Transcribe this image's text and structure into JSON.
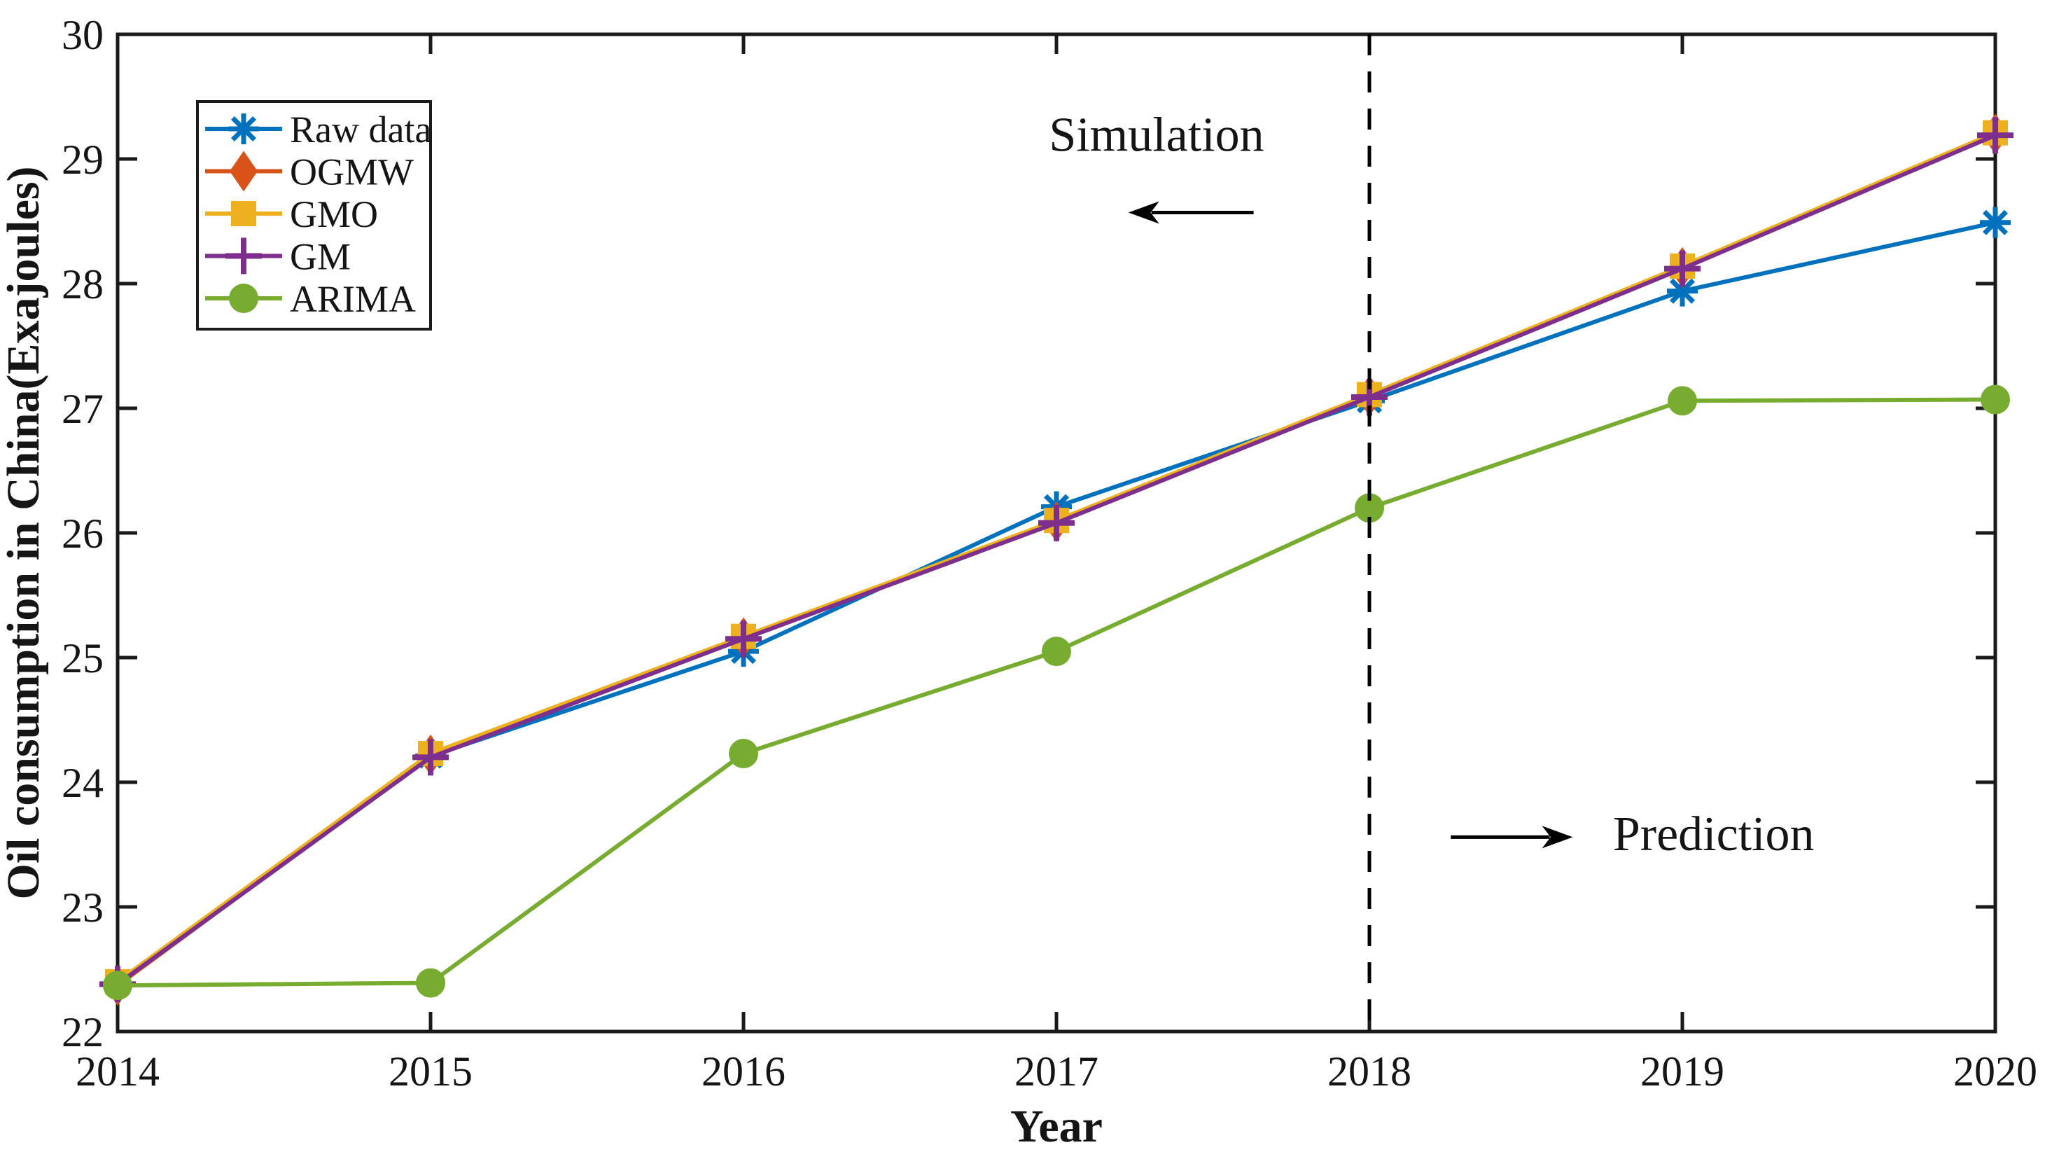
{
  "chart_data": {
    "type": "line",
    "title": "",
    "xlabel": "Year",
    "ylabel": "Oil consumption in China(Exajoules)",
    "xlim": [
      2014,
      2020
    ],
    "ylim": [
      22,
      30
    ],
    "x_ticks": [
      2014,
      2015,
      2016,
      2017,
      2018,
      2019,
      2020
    ],
    "y_ticks": [
      22,
      23,
      24,
      25,
      26,
      27,
      28,
      29,
      30
    ],
    "grid": false,
    "box": true,
    "legend_position": "upper-left-inside",
    "x": [
      2014,
      2015,
      2016,
      2017,
      2018,
      2019,
      2020
    ],
    "series": [
      {
        "name": "Raw data",
        "marker": "asterisk",
        "color": "#0072BD",
        "values": [
          22.38,
          24.21,
          25.05,
          26.21,
          27.06,
          27.94,
          28.49
        ]
      },
      {
        "name": "OGMW",
        "marker": "diamond",
        "color": "#D95319",
        "values": [
          22.37,
          24.22,
          25.16,
          26.09,
          27.1,
          28.13,
          29.2
        ]
      },
      {
        "name": "GMO",
        "marker": "square",
        "color": "#EDB120",
        "values": [
          22.4,
          24.23,
          25.17,
          26.1,
          27.11,
          28.14,
          29.21
        ]
      },
      {
        "name": "GM",
        "marker": "plus",
        "color": "#7E2F8E",
        "values": [
          22.38,
          24.2,
          25.15,
          26.08,
          27.09,
          28.12,
          29.19
        ]
      },
      {
        "name": "ARIMA",
        "marker": "circle",
        "color": "#77AC30",
        "values": [
          22.37,
          22.39,
          24.23,
          25.05,
          26.2,
          27.06,
          27.07
        ]
      }
    ],
    "divider": {
      "x": 2018,
      "style": "dashed",
      "color": "#000000"
    },
    "annotations": [
      {
        "id": "simulation",
        "text": "Simulation",
        "x": 2017.32,
        "y": 29.2
      },
      {
        "id": "prediction",
        "text": "Prediction",
        "x": 2019.1,
        "y": 23.59
      }
    ],
    "arrows": [
      {
        "id": "simulation-arrow",
        "direction": "left",
        "x_tail": 2017.63,
        "x_head": 2017.23,
        "y": 28.57
      },
      {
        "id": "prediction-arrow",
        "direction": "right",
        "x_tail": 2018.26,
        "x_head": 2018.65,
        "y": 23.56
      }
    ],
    "axis_color": "#1a1a1a",
    "text_color": "#151515"
  }
}
